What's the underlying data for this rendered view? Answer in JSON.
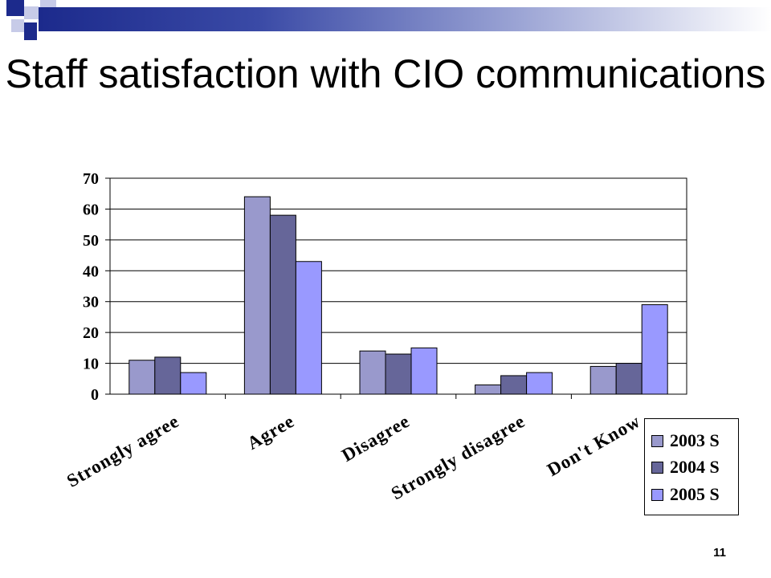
{
  "slide": {
    "title": "Staff satisfaction with CIO communications",
    "page_number": "11"
  },
  "colors": {
    "series_2003": "#9999cc",
    "series_2004": "#666699",
    "series_2005": "#9999ff",
    "header_dark": "#1c2a8c"
  },
  "chart_data": {
    "type": "bar",
    "categories": [
      "Strongly agree",
      "Agree",
      "Disagree",
      "Strongly disagree",
      "Don't Know"
    ],
    "series": [
      {
        "name": "2003 S",
        "values": [
          11,
          64,
          14,
          3,
          9
        ]
      },
      {
        "name": "2004 S",
        "values": [
          12,
          58,
          13,
          6,
          10
        ]
      },
      {
        "name": "2005 S",
        "values": [
          7,
          43,
          15,
          7,
          29
        ]
      }
    ],
    "yticks": [
      "0",
      "10",
      "20",
      "30",
      "40",
      "50",
      "60",
      "70"
    ],
    "ylim": [
      0,
      70
    ],
    "grid": true,
    "legend_position": "bottom-right"
  }
}
